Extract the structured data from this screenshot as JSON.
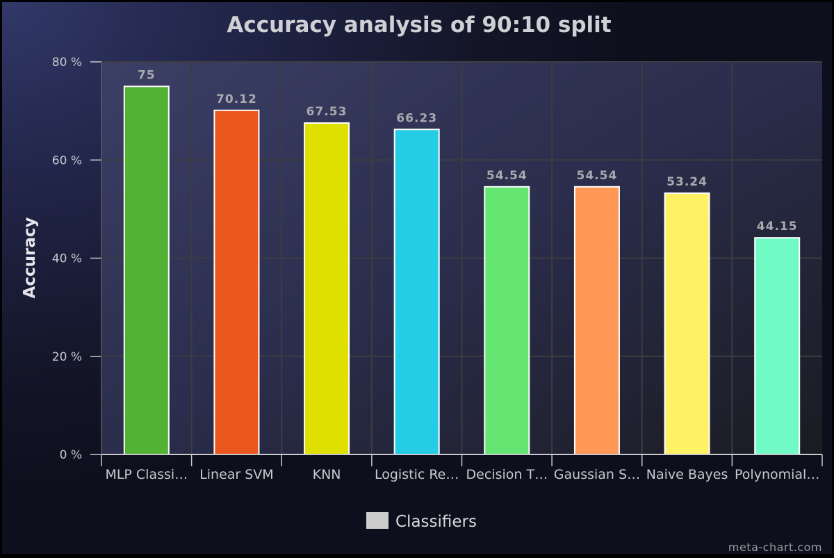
{
  "chart_data": {
    "type": "bar",
    "title": "Accuracy analysis of 90:10 split",
    "xlabel": "",
    "ylabel": "Accuracy",
    "ylim": [
      0,
      80
    ],
    "y_ticks": [
      "0 %",
      "20 %",
      "40 %",
      "60 %",
      "80 %"
    ],
    "y_tick_values": [
      0,
      20,
      40,
      60,
      80
    ],
    "categories": [
      "MLP Classi…",
      "Linear SVM",
      "KNN",
      "Logistic Re…",
      "Decision T…",
      "Gaussian S…",
      "Naive Bayes",
      "Polynomial…"
    ],
    "data_labels": [
      "75",
      "70.12",
      "67.53",
      "66.23",
      "54.54",
      "54.54",
      "53.24",
      "44.15"
    ],
    "series": [
      {
        "name": "Classifiers",
        "values": [
          75,
          70.12,
          67.53,
          66.23,
          54.54,
          54.54,
          53.24,
          44.15
        ]
      }
    ],
    "bar_colors": [
      "#52b234",
      "#eb581e",
      "#dfdf00",
      "#25cce5",
      "#65e572",
      "#ff9757",
      "#fff166",
      "#6ffac6"
    ],
    "legend": {
      "label": "Classifiers",
      "swatch_color": "#cccccc",
      "position": "bottom-center"
    },
    "grid": true,
    "watermark": "meta-chart.com"
  }
}
